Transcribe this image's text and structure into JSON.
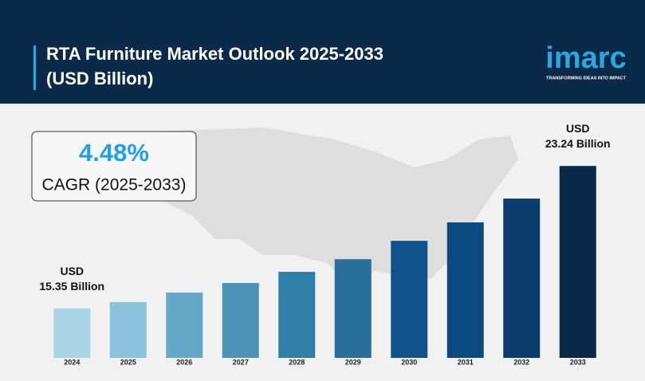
{
  "brand": {
    "name": "imarc",
    "tagline": "TRANSFORMING IDEAS INTO IMPACT"
  },
  "chart_data": {
    "type": "bar",
    "title": "RTA Furniture Market Outlook 2025-2033 (USD Billion)",
    "callout": {
      "value": "4.48%",
      "label": "CAGR (2025-2033)"
    },
    "categories": [
      "2024",
      "2025",
      "2026",
      "2027",
      "2028",
      "2029",
      "2030",
      "2031",
      "2032",
      "2033"
    ],
    "values": [
      15.35,
      15.69,
      16.22,
      16.75,
      17.37,
      18.07,
      19.09,
      20.11,
      21.43,
      23.24
    ],
    "value_labels": [
      "USD\n15.35 Billion",
      null,
      null,
      null,
      null,
      null,
      null,
      null,
      null,
      "USD\n23.24 Billion"
    ],
    "colors": [
      "#a9d5e7",
      "#8ac3db",
      "#63a8c7",
      "#4a93b6",
      "#2f80a8",
      "#296f9b",
      "#0f518b",
      "#0b4a7f",
      "#0b3c6b",
      "#0a2848"
    ],
    "ylim": [
      12.6,
      24
    ]
  }
}
